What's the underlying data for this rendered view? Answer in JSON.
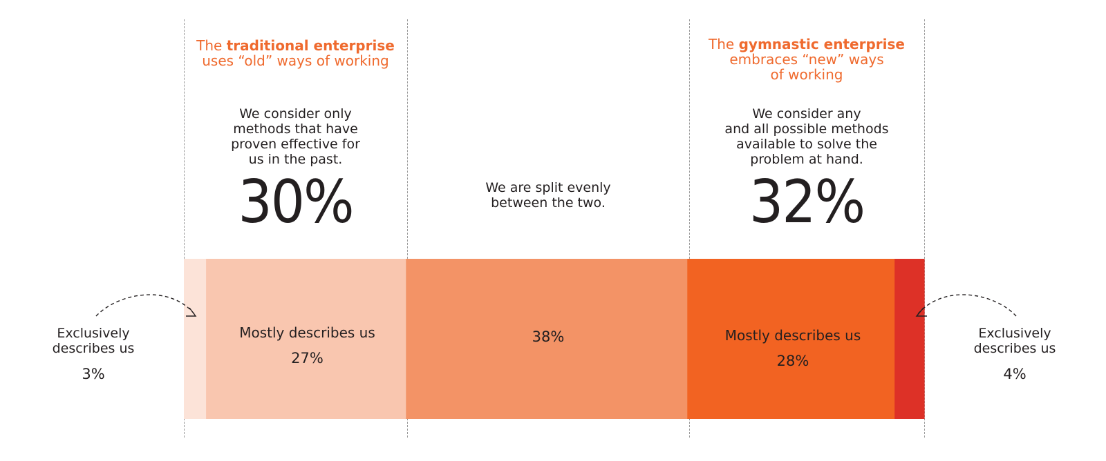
{
  "chart_data": {
    "type": "bar",
    "orientation": "horizontal-stacked",
    "series": [
      {
        "name": "Exclusively describes us",
        "value": 3,
        "color": "#fce3d8"
      },
      {
        "name": "Mostly describes us",
        "value": 27,
        "color": "#f9c6af"
      },
      {
        "name": "We are split evenly between the two.",
        "value": 38,
        "color": "#f39366"
      },
      {
        "name": "Mostly describes us",
        "value": 28,
        "color": "#f26322"
      },
      {
        "name": "Exclusively describes us",
        "value": 4,
        "color": "#dd3127"
      }
    ],
    "left_group": {
      "headline_pre": "The ",
      "headline_bold": "traditional enterprise",
      "headline_line2": "uses “old” ways of working",
      "description": [
        "We consider only",
        "methods that have",
        "proven effective for",
        "us in the past."
      ],
      "total": "30%"
    },
    "middle_group": {
      "description": [
        "We are split evenly",
        "between the two."
      ]
    },
    "right_group": {
      "headline_pre": "The ",
      "headline_bold": "gymnastic enterprise",
      "headline_line2": "embraces “new” ways",
      "headline_line3": "of working",
      "description": [
        "We consider any",
        "and all possible methods",
        "available to solve the",
        "problem at hand."
      ],
      "total": "32%"
    },
    "labels": {
      "left_exclusive": [
        "Exclusively",
        "describes us"
      ],
      "left_exclusive_value": "3%",
      "left_mostly": "Mostly describes us",
      "left_mostly_value": "27%",
      "middle_value": "38%",
      "right_mostly": "Mostly describes us",
      "right_mostly_value": "28%",
      "right_exclusive": [
        "Exclusively",
        "describes us"
      ],
      "right_exclusive_value": "4%"
    },
    "accent_color": "#ef6a2e"
  }
}
